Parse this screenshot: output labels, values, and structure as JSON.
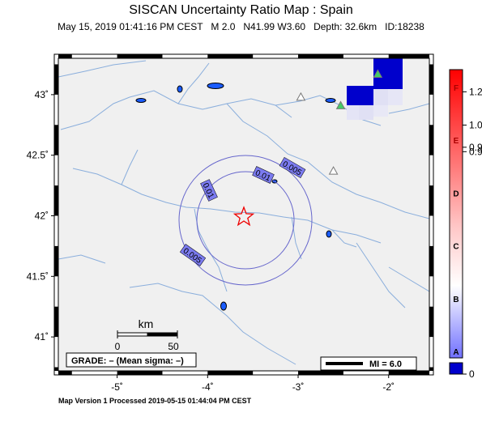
{
  "header": {
    "title": "SISCAN Uncertainty Ratio Map : Spain",
    "subtitle": "May 15, 2019 01:41:16 PM CEST   M 2.0   N41.99 W3.60   Depth: 32.6km   ID:18238"
  },
  "footer": {
    "processed": "Map Version 1 Processed 2019-05-15 01:44:04 PM CEST"
  },
  "map": {
    "lon_range": [
      -5.65,
      -1.55
    ],
    "lat_range": [
      40.72,
      43.3
    ],
    "lon_ticks": [
      {
        "value": -5,
        "label": "-5˚"
      },
      {
        "value": -4,
        "label": "-4˚"
      },
      {
        "value": -3,
        "label": "-3˚"
      },
      {
        "value": -2,
        "label": "-2˚"
      }
    ],
    "lat_ticks": [
      {
        "value": 41,
        "label": "41˚"
      },
      {
        "value": 41.5,
        "label": "41.5˚"
      },
      {
        "value": 42,
        "label": "42˚"
      },
      {
        "value": 42.5,
        "label": "42.5˚"
      },
      {
        "value": 43,
        "label": "43˚"
      }
    ],
    "epicenter": {
      "lon": -3.6,
      "lat": 41.99
    },
    "contour_labels": [
      {
        "text": "0.005",
        "value": 0.005
      },
      {
        "text": "0.01",
        "value": 0.01
      },
      {
        "text": "0.01",
        "value": 0.01
      },
      {
        "text": "0.005",
        "value": 0.005
      }
    ],
    "stations": [
      {
        "lon": -2.12,
        "lat": 43.17,
        "color": "#44cc66"
      },
      {
        "lon": -2.53,
        "lat": 42.91,
        "color": "#44cc66"
      },
      {
        "lon": -2.97,
        "lat": 42.98,
        "color": "#ffffff"
      },
      {
        "lon": -2.61,
        "lat": 42.37,
        "color": "#ffffff"
      }
    ],
    "scale_bar": {
      "unit": "km",
      "labels": [
        "0",
        "50"
      ]
    },
    "grade": "GRADE: – (Mean sigma: –)",
    "mi_legend": "MI = 6.0",
    "colors": {
      "land": "#f0f0f0",
      "rivers": "#8aaedc",
      "contour": "#6666cc",
      "contour_label_bg": "#7b7bf0",
      "cell_blue": "#0000cc"
    }
  },
  "colorbar": {
    "letters": [
      "F",
      "E",
      "D",
      "C",
      "B",
      "A"
    ],
    "letter_colors": [
      "#aa0000",
      "#aa0000",
      "#000000",
      "#000000",
      "#000000",
      "#000000"
    ],
    "tick_labels": [
      {
        "value": 1.2,
        "label": "1.2"
      },
      {
        "value": 1.05,
        "label": "1.0"
      },
      {
        "value": 0.95,
        "label": "0.9"
      },
      {
        "value": 0.93,
        "label": "0.9"
      },
      {
        "value": 0.0,
        "label": "0"
      }
    ],
    "colors": {
      "top": "#ff0000",
      "mid": "#ffffff",
      "bottom": "#8080ff",
      "nodata": "#0000cc"
    }
  }
}
